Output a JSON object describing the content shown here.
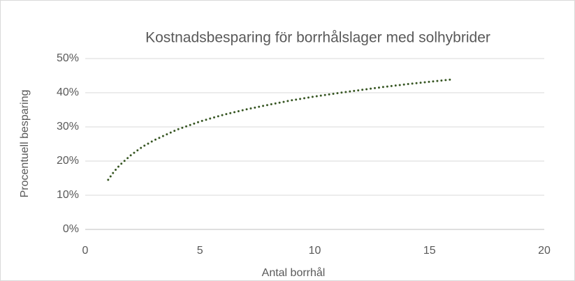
{
  "chart_data": {
    "type": "line",
    "title": "Kostnadsbesparing för borrhålslager med solhybrider",
    "x_label": "Antal borrhål",
    "y_label": "Procentuell besparing",
    "series": [
      {
        "name": "Procentuell besparing",
        "color": "#375623",
        "x": [
          1,
          1.25,
          1.5,
          2,
          2.5,
          3,
          4,
          5,
          6,
          7,
          8,
          9,
          10,
          11,
          12,
          13,
          14,
          15,
          16
        ],
        "values": [
          14.5,
          16.9,
          18.8,
          21.8,
          24.2,
          26.1,
          29.2,
          31.6,
          33.5,
          35.1,
          36.5,
          37.8,
          38.9,
          39.9,
          40.8,
          41.7,
          42.5,
          43.2,
          43.9
        ]
      }
    ],
    "xlim": [
      0,
      20
    ],
    "xticks": [
      0,
      5,
      10,
      15,
      20
    ],
    "ylim": [
      0,
      50
    ],
    "yticks": [
      {
        "value": 0,
        "label": "0%"
      },
      {
        "value": 10,
        "label": "10%"
      },
      {
        "value": 20,
        "label": "20%"
      },
      {
        "value": 30,
        "label": "30%"
      },
      {
        "value": 40,
        "label": "40%"
      },
      {
        "value": 50,
        "label": "50%"
      }
    ],
    "grid": true
  }
}
